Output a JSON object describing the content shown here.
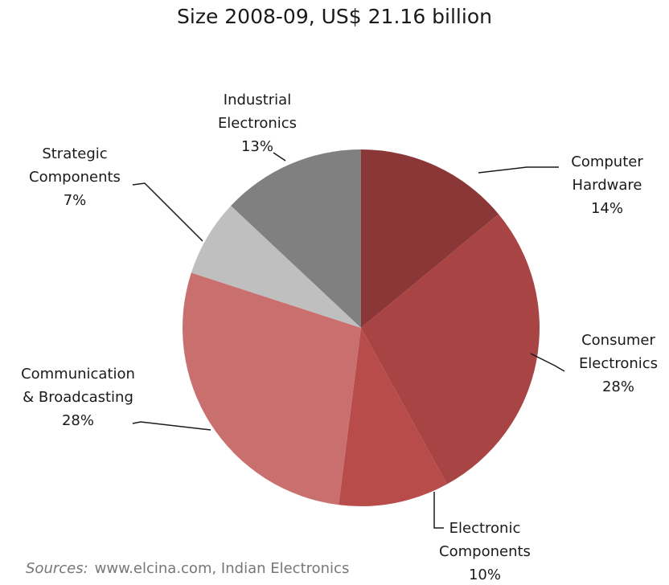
{
  "chart_data": {
    "type": "pie",
    "title": "Size 2008-09, US$ 21.16 billion",
    "slices": [
      {
        "label_lines": [
          "Computer",
          "Hardware"
        ],
        "percent_label": "14%",
        "value": 14,
        "color": "#8b3737"
      },
      {
        "label_lines": [
          "Consumer",
          "Electronics"
        ],
        "percent_label": "28%",
        "value": 28,
        "color": "#a84443"
      },
      {
        "label_lines": [
          "Electronic",
          "Components"
        ],
        "percent_label": "10%",
        "value": 10,
        "color": "#b84c4a"
      },
      {
        "label_lines": [
          "Communication",
          "& Broadcasting"
        ],
        "percent_label": "28%",
        "value": 28,
        "color": "#c9706f"
      },
      {
        "label_lines": [
          "Strategic",
          "Components"
        ],
        "percent_label": "7%",
        "value": 7,
        "color": "#bfbfbf"
      },
      {
        "label_lines": [
          "Industrial",
          "Electronics"
        ],
        "percent_label": "13%",
        "value": 13,
        "color": "#808080"
      }
    ]
  },
  "source": {
    "label": "Sources:",
    "text": "www.elcina.com, Indian Electronics"
  }
}
